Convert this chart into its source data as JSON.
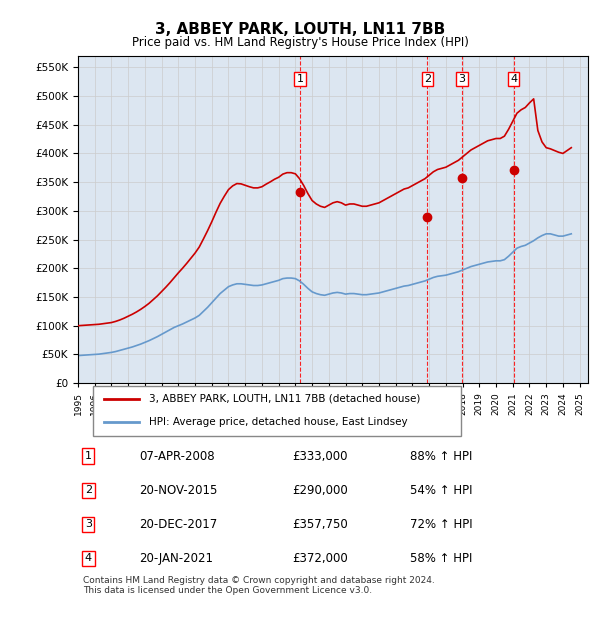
{
  "title": "3, ABBEY PARK, LOUTH, LN11 7BB",
  "subtitle": "Price paid vs. HM Land Registry's House Price Index (HPI)",
  "ylim": [
    0,
    570000
  ],
  "yticks": [
    0,
    50000,
    100000,
    150000,
    200000,
    250000,
    300000,
    350000,
    400000,
    450000,
    500000,
    550000
  ],
  "xlim_start": 1995.0,
  "xlim_end": 2025.5,
  "sale_dates": [
    2008.27,
    2015.9,
    2017.97,
    2021.05
  ],
  "sale_prices": [
    333000,
    290000,
    357750,
    372000
  ],
  "sale_labels": [
    "1",
    "2",
    "3",
    "4"
  ],
  "sale_info": [
    {
      "label": "1",
      "date": "07-APR-2008",
      "price": "£333,000",
      "hpi": "88% ↑ HPI"
    },
    {
      "label": "2",
      "date": "20-NOV-2015",
      "price": "£290,000",
      "hpi": "54% ↑ HPI"
    },
    {
      "label": "3",
      "date": "20-DEC-2017",
      "price": "£357,750",
      "hpi": "72% ↑ HPI"
    },
    {
      "label": "4",
      "date": "20-JAN-2021",
      "price": "£372,000",
      "hpi": "58% ↑ HPI"
    }
  ],
  "red_line_color": "#cc0000",
  "blue_line_color": "#6699cc",
  "bg_color": "#dce6f1",
  "plot_bg": "#ffffff",
  "grid_color": "#cccccc",
  "footer": "Contains HM Land Registry data © Crown copyright and database right 2024.\nThis data is licensed under the Open Government Licence v3.0.",
  "legend1": "3, ABBEY PARK, LOUTH, LN11 7BB (detached house)",
  "legend2": "HPI: Average price, detached house, East Lindsey",
  "hpi_line_x": [
    1995.0,
    1995.25,
    1995.5,
    1995.75,
    1996.0,
    1996.25,
    1996.5,
    1996.75,
    1997.0,
    1997.25,
    1997.5,
    1997.75,
    1998.0,
    1998.25,
    1998.5,
    1998.75,
    1999.0,
    1999.25,
    1999.5,
    1999.75,
    2000.0,
    2000.25,
    2000.5,
    2000.75,
    2001.0,
    2001.25,
    2001.5,
    2001.75,
    2002.0,
    2002.25,
    2002.5,
    2002.75,
    2003.0,
    2003.25,
    2003.5,
    2003.75,
    2004.0,
    2004.25,
    2004.5,
    2004.75,
    2005.0,
    2005.25,
    2005.5,
    2005.75,
    2006.0,
    2006.25,
    2006.5,
    2006.75,
    2007.0,
    2007.25,
    2007.5,
    2007.75,
    2008.0,
    2008.25,
    2008.5,
    2008.75,
    2009.0,
    2009.25,
    2009.5,
    2009.75,
    2010.0,
    2010.25,
    2010.5,
    2010.75,
    2011.0,
    2011.25,
    2011.5,
    2011.75,
    2012.0,
    2012.25,
    2012.5,
    2012.75,
    2013.0,
    2013.25,
    2013.5,
    2013.75,
    2014.0,
    2014.25,
    2014.5,
    2014.75,
    2015.0,
    2015.25,
    2015.5,
    2015.75,
    2016.0,
    2016.25,
    2016.5,
    2016.75,
    2017.0,
    2017.25,
    2017.5,
    2017.75,
    2018.0,
    2018.25,
    2018.5,
    2018.75,
    2019.0,
    2019.25,
    2019.5,
    2019.75,
    2020.0,
    2020.25,
    2020.5,
    2020.75,
    2021.0,
    2021.25,
    2021.5,
    2021.75,
    2022.0,
    2022.25,
    2022.5,
    2022.75,
    2023.0,
    2023.25,
    2023.5,
    2023.75,
    2024.0,
    2024.25,
    2024.5
  ],
  "hpi_line_y": [
    48000,
    48500,
    49000,
    49500,
    50000,
    50500,
    51500,
    52500,
    53500,
    55000,
    57000,
    59000,
    61000,
    63000,
    65500,
    68000,
    71000,
    74000,
    77500,
    81000,
    85000,
    89000,
    93000,
    97000,
    100000,
    103000,
    106500,
    110000,
    113500,
    118000,
    125000,
    132000,
    140000,
    148000,
    156000,
    162000,
    168000,
    171000,
    173000,
    173000,
    172000,
    171000,
    170000,
    170000,
    171000,
    173000,
    175000,
    177000,
    179000,
    182000,
    183000,
    183000,
    182000,
    178000,
    172000,
    165000,
    159000,
    156000,
    154000,
    153000,
    155000,
    157000,
    158000,
    157000,
    155000,
    156000,
    156000,
    155000,
    154000,
    154000,
    155000,
    156000,
    157000,
    159000,
    161000,
    163000,
    165000,
    167000,
    169000,
    170000,
    172000,
    174000,
    176000,
    178000,
    181000,
    184000,
    186000,
    187000,
    188000,
    190000,
    192000,
    194000,
    197000,
    200000,
    203000,
    205000,
    207000,
    209000,
    211000,
    212000,
    213000,
    213000,
    215000,
    221000,
    228000,
    235000,
    238000,
    240000,
    244000,
    248000,
    253000,
    257000,
    260000,
    260000,
    258000,
    256000,
    256000,
    258000,
    260000
  ],
  "red_line_x": [
    1995.0,
    1995.25,
    1995.5,
    1995.75,
    1996.0,
    1996.25,
    1996.5,
    1996.75,
    1997.0,
    1997.25,
    1997.5,
    1997.75,
    1998.0,
    1998.25,
    1998.5,
    1998.75,
    1999.0,
    1999.25,
    1999.5,
    1999.75,
    2000.0,
    2000.25,
    2000.5,
    2000.75,
    2001.0,
    2001.25,
    2001.5,
    2001.75,
    2002.0,
    2002.25,
    2002.5,
    2002.75,
    2003.0,
    2003.25,
    2003.5,
    2003.75,
    2004.0,
    2004.25,
    2004.5,
    2004.75,
    2005.0,
    2005.25,
    2005.5,
    2005.75,
    2006.0,
    2006.25,
    2006.5,
    2006.75,
    2007.0,
    2007.25,
    2007.5,
    2007.75,
    2008.0,
    2008.25,
    2008.5,
    2008.75,
    2009.0,
    2009.25,
    2009.5,
    2009.75,
    2010.0,
    2010.25,
    2010.5,
    2010.75,
    2011.0,
    2011.25,
    2011.5,
    2011.75,
    2012.0,
    2012.25,
    2012.5,
    2012.75,
    2013.0,
    2013.25,
    2013.5,
    2013.75,
    2014.0,
    2014.25,
    2014.5,
    2014.75,
    2015.0,
    2015.25,
    2015.5,
    2015.75,
    2016.0,
    2016.25,
    2016.5,
    2016.75,
    2017.0,
    2017.25,
    2017.5,
    2017.75,
    2018.0,
    2018.25,
    2018.5,
    2018.75,
    2019.0,
    2019.25,
    2019.5,
    2019.75,
    2020.0,
    2020.25,
    2020.5,
    2020.75,
    2021.0,
    2021.25,
    2021.5,
    2021.75,
    2022.0,
    2022.25,
    2022.5,
    2022.75,
    2023.0,
    2023.25,
    2023.5,
    2023.75,
    2024.0,
    2024.25,
    2024.5
  ],
  "red_line_y": [
    100000,
    100500,
    101000,
    101500,
    102000,
    102500,
    103500,
    104500,
    105500,
    107500,
    110000,
    113000,
    116500,
    120000,
    124000,
    128500,
    133500,
    139000,
    145500,
    152000,
    159500,
    167000,
    175000,
    183500,
    192000,
    200000,
    208500,
    217500,
    226500,
    237000,
    251000,
    265500,
    281000,
    297500,
    313000,
    325500,
    337000,
    343500,
    347500,
    347000,
    344500,
    342000,
    340000,
    340000,
    342000,
    346500,
    350500,
    355000,
    358500,
    364000,
    366500,
    366500,
    364500,
    356000,
    344000,
    330000,
    318000,
    312000,
    308000,
    306000,
    310000,
    314000,
    316000,
    314000,
    310000,
    312000,
    312000,
    310000,
    308000,
    308000,
    310000,
    312000,
    314000,
    318000,
    322000,
    326000,
    330000,
    334000,
    338000,
    340000,
    344000,
    348000,
    352000,
    356000,
    362000,
    368000,
    372000,
    374000,
    376000,
    380000,
    384000,
    388000,
    394000,
    400000,
    406000,
    410000,
    414000,
    418000,
    422000,
    424000,
    426000,
    426000,
    430000,
    442000,
    456000,
    470000,
    476000,
    480000,
    488000,
    495000,
    440000,
    420000,
    410000,
    408000,
    405000,
    402000,
    400000,
    405000,
    410000
  ]
}
